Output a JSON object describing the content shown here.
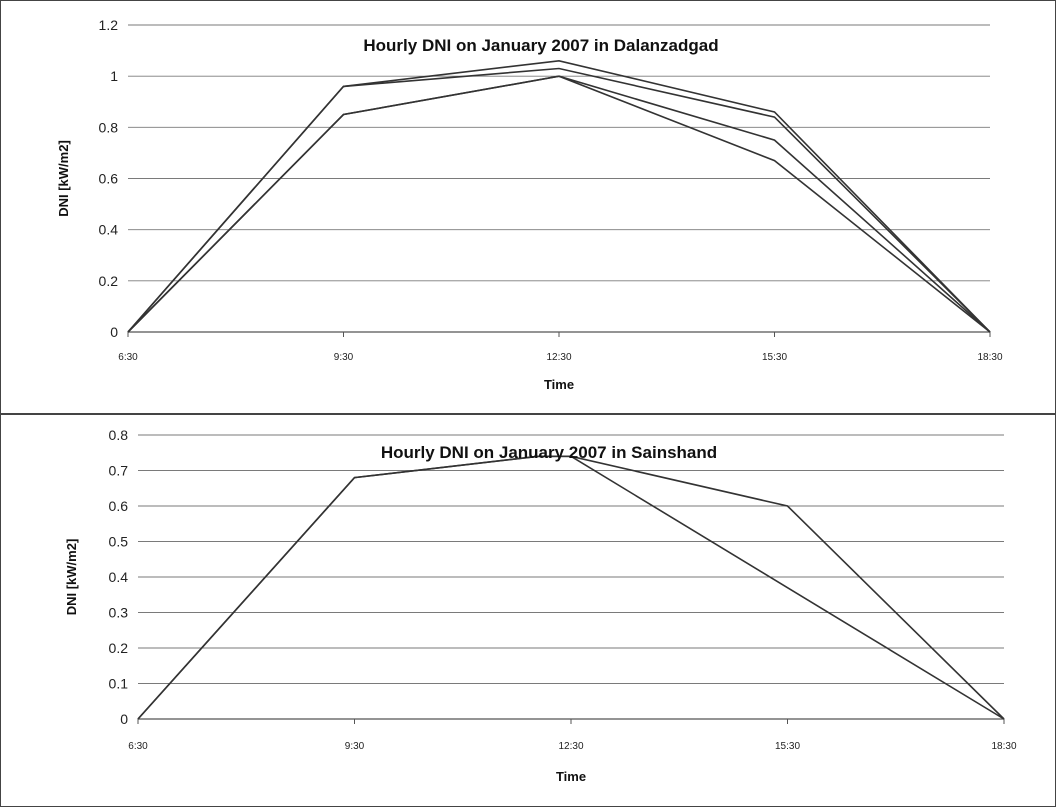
{
  "chart_data": [
    {
      "type": "line",
      "title": "Hourly DNI on January 2007 in Dalanzadgad",
      "xlabel": "Time",
      "ylabel": "DNI [kW/m2]",
      "categories": [
        "6:30",
        "9:30",
        "12:30",
        "15:30",
        "18:30"
      ],
      "ylim": [
        0,
        1.2
      ],
      "yticks": [
        0,
        0.2,
        0.4,
        0.6,
        0.8,
        1,
        1.2
      ],
      "grid": true,
      "series_color": "#333333",
      "series": [
        {
          "values": [
            0,
            0.96,
            1.06,
            0.86,
            0
          ]
        },
        {
          "values": [
            0,
            0.96,
            1.03,
            0.84,
            0
          ]
        },
        {
          "values": [
            0,
            0.85,
            1.0,
            0.75,
            0
          ]
        },
        {
          "values": [
            0,
            0.85,
            1.0,
            0.67,
            0
          ]
        }
      ]
    },
    {
      "type": "line",
      "title": "Hourly DNI on January 2007 in Sainshand",
      "xlabel": "Time",
      "ylabel": "DNI [kW/m2]",
      "categories": [
        "6:30",
        "9:30",
        "12:30",
        "15:30",
        "18:30"
      ],
      "ylim": [
        0,
        0.8
      ],
      "yticks": [
        0,
        0.1,
        0.2,
        0.3,
        0.4,
        0.5,
        0.6,
        0.7,
        0.8
      ],
      "grid": true,
      "series_color": "#333333",
      "series": [
        {
          "x": [
            0,
            1,
            1.85,
            2,
            3,
            4
          ],
          "values": [
            0,
            0.68,
            0.74,
            0.74,
            0.6,
            0
          ]
        },
        {
          "x": [
            0,
            1,
            1.85,
            2,
            3,
            4
          ],
          "values": [
            0,
            0.68,
            0.74,
            0.74,
            0.37,
            0
          ]
        }
      ]
    }
  ]
}
